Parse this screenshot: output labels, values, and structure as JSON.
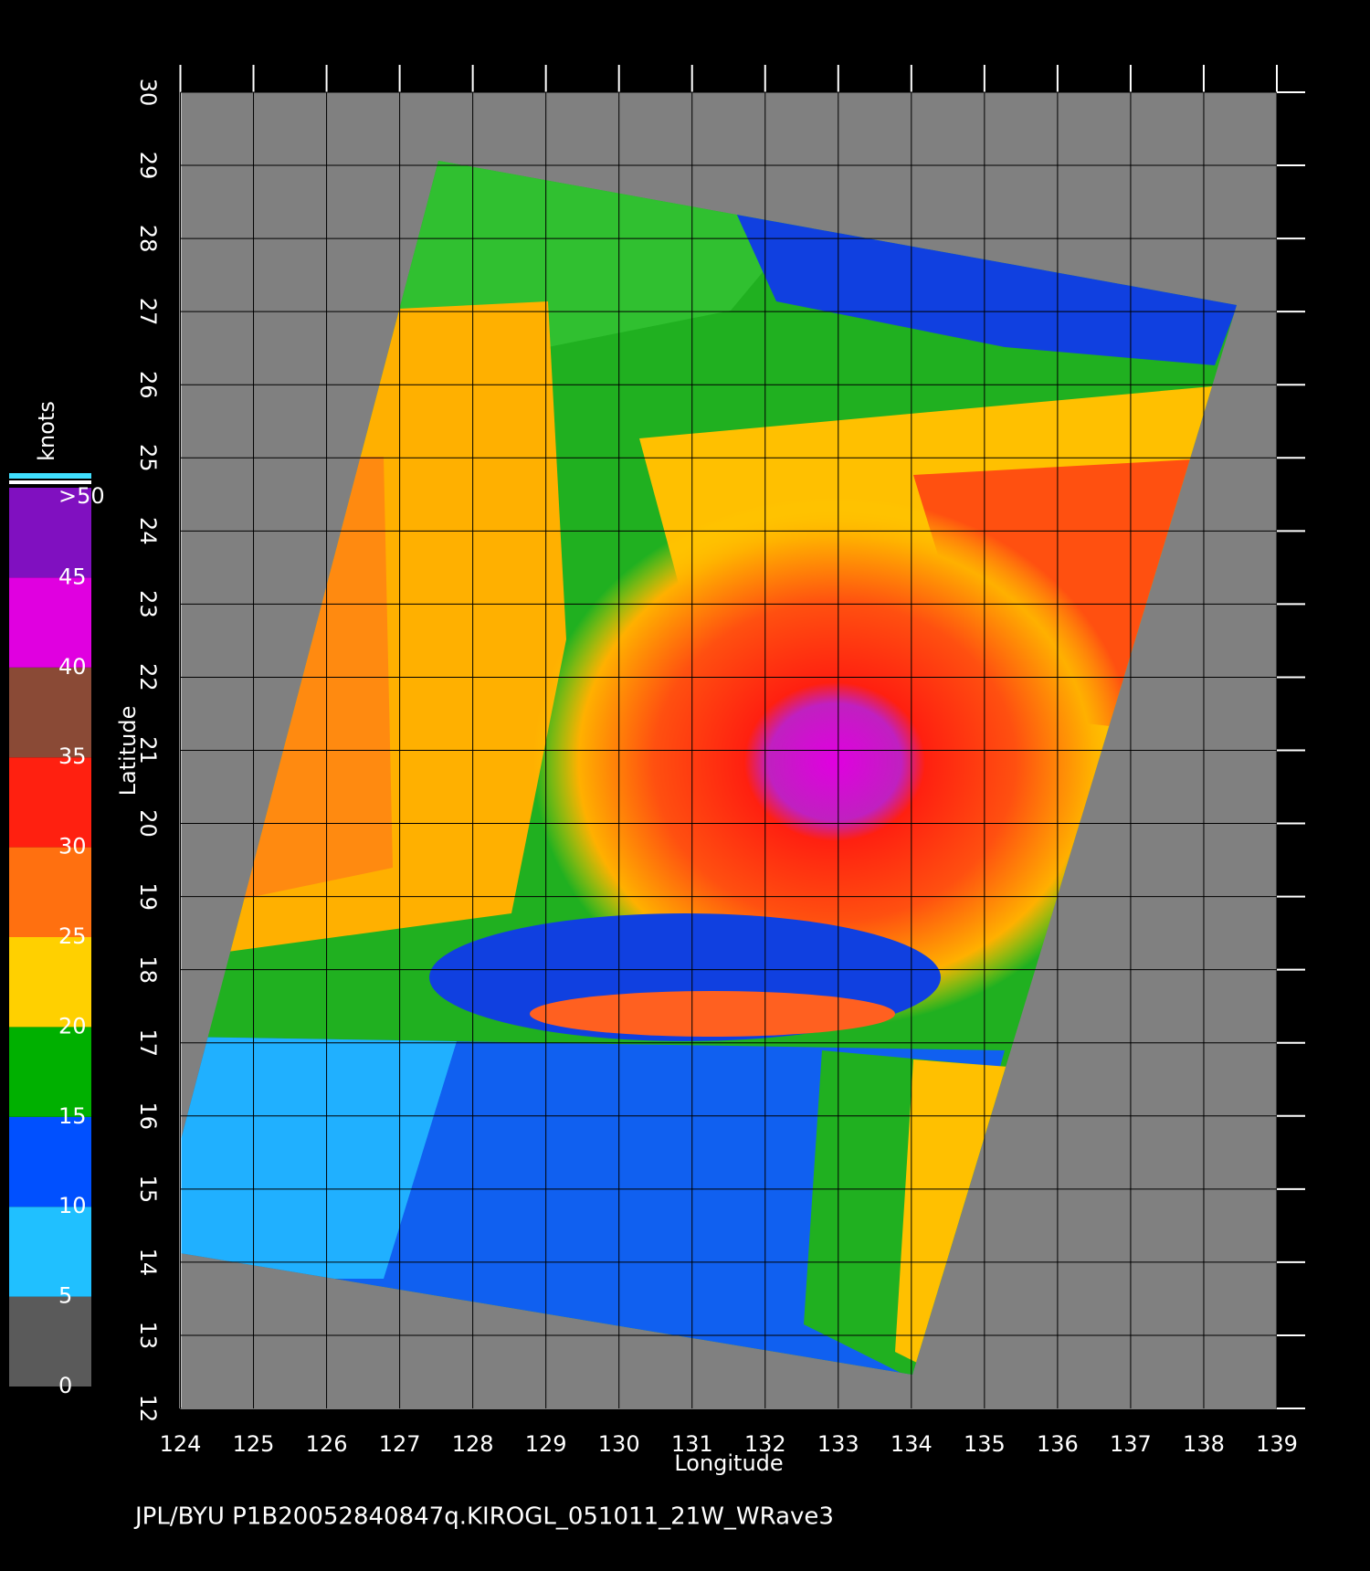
{
  "chart_data": {
    "type": "map",
    "xlabel": "Longitude",
    "ylabel": "Latitude",
    "xlim": [
      124,
      139
    ],
    "ylim": [
      12,
      30
    ],
    "xticks": [
      124,
      125,
      126,
      127,
      128,
      129,
      130,
      131,
      132,
      133,
      134,
      135,
      136,
      137,
      138,
      139
    ],
    "yticks": [
      12,
      13,
      14,
      15,
      16,
      17,
      18,
      19,
      20,
      21,
      22,
      23,
      24,
      25,
      26,
      27,
      28,
      29,
      30
    ],
    "grid": true,
    "colorbar": {
      "title": "knots",
      "lim": [
        0,
        50
      ],
      "ticks": [
        0,
        5,
        10,
        15,
        20,
        25,
        30,
        35,
        40,
        45,
        {
          "value": 50,
          "label": ">50"
        }
      ],
      "colors": [
        "#5a5a5a",
        "#20c0ff",
        "#0050ff",
        "#00b000",
        "#ffd000",
        "#ff7010",
        "#ff2010",
        "#8a4a36",
        "#e000e0",
        "#8010c0"
      ]
    },
    "footer": "JPL/BYU  P1B20052840847q.KIROGL_051011_21W_WRave3"
  }
}
